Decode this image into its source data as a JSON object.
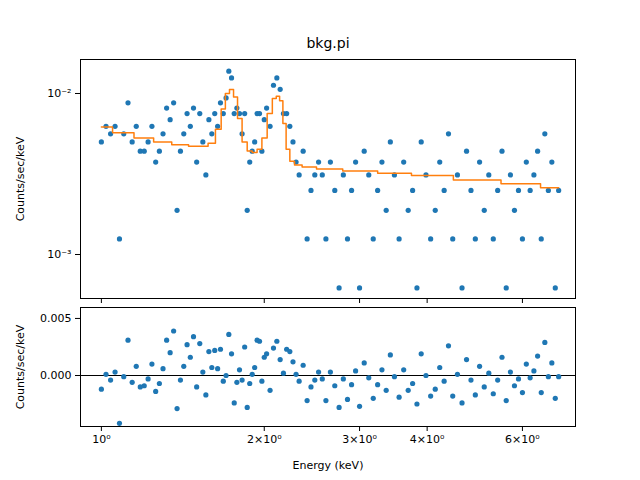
{
  "chart_data": [
    {
      "type": "scatter",
      "title": "bkg.pi",
      "ylabel": "Counts/sec/keV",
      "log": true,
      "tick_labels": "y",
      "xlim": [
        0.915,
        7.52
      ],
      "ylim": [
        0.000533,
        0.01626
      ],
      "xticks": [
        {
          "value": 1,
          "label": "10⁰"
        },
        {
          "value": 2,
          "label": "2×10⁰"
        },
        {
          "value": 3,
          "label": "3×10⁰"
        },
        {
          "value": 4,
          "label": "4×10⁰"
        },
        {
          "value": 6,
          "label": "6×10⁰"
        }
      ],
      "yticks": [
        {
          "value": 0.001,
          "label": "10⁻³"
        },
        {
          "value": 0.01,
          "label": "10⁻²"
        }
      ],
      "series": [
        {
          "type": "scatter",
          "color": "#1f77b4",
          "marker": "circle",
          "x": [
            1.0,
            1.02,
            1.04,
            1.06,
            1.08,
            1.1,
            1.12,
            1.14,
            1.16,
            1.18,
            1.2,
            1.22,
            1.24,
            1.26,
            1.28,
            1.3,
            1.32,
            1.34,
            1.36,
            1.38,
            1.4,
            1.42,
            1.44,
            1.46,
            1.48,
            1.5,
            1.52,
            1.54,
            1.56,
            1.58,
            1.6,
            1.62,
            1.64,
            1.66,
            1.68,
            1.7,
            1.72,
            1.74,
            1.76,
            1.78,
            1.8,
            1.82,
            1.84,
            1.86,
            1.88,
            1.9,
            1.92,
            1.94,
            1.96,
            1.98,
            2.0,
            2.02,
            2.05,
            2.08,
            2.11,
            2.14,
            2.17,
            2.2,
            2.23,
            2.26,
            2.29,
            2.32,
            2.36,
            2.4,
            2.44,
            2.48,
            2.52,
            2.56,
            2.6,
            2.65,
            2.7,
            2.75,
            2.8,
            2.85,
            2.9,
            2.95,
            3.0,
            3.06,
            3.12,
            3.18,
            3.24,
            3.3,
            3.36,
            3.42,
            3.48,
            3.55,
            3.62,
            3.69,
            3.76,
            3.83,
            3.9,
            3.98,
            4.06,
            4.14,
            4.22,
            4.3,
            4.38,
            4.46,
            4.55,
            4.64,
            4.73,
            4.82,
            4.91,
            5.0,
            5.1,
            5.2,
            5.3,
            5.4,
            5.5,
            5.6,
            5.7,
            5.8,
            5.9,
            6.0,
            6.1,
            6.2,
            6.3,
            6.4,
            6.5,
            6.6,
            6.7,
            6.8,
            6.9,
            7.0
          ],
          "values": [
            0.005,
            0.00625,
            0.00562,
            0.00625,
            0.00125,
            0.00562,
            0.00875,
            0.005,
            0.00625,
            0.00438,
            0.00438,
            0.005,
            0.00625,
            0.00375,
            0.00438,
            0.00562,
            0.00812,
            0.00688,
            0.00875,
            0.00188,
            0.00438,
            0.00562,
            0.0075,
            0.00625,
            0.00812,
            0.00375,
            0.0075,
            0.005,
            0.00312,
            0.00688,
            0.00562,
            0.0075,
            0.00625,
            0.00875,
            0.0075,
            0.00938,
            0.01375,
            0.0125,
            0.0075,
            0.00812,
            0.0075,
            0.00562,
            0.0075,
            0.00188,
            0.00375,
            0.00438,
            0.005,
            0.0075,
            0.0075,
            0.00438,
            0.00688,
            0.00812,
            0.00625,
            0.01125,
            0.0125,
            0.01062,
            0.0075,
            0.0075,
            0.00625,
            0.005,
            0.00375,
            0.00312,
            0.00438,
            0.00125,
            0.0025,
            0.00312,
            0.00375,
            0.00312,
            0.00125,
            0.00375,
            0.0025,
            0.00062,
            0.00312,
            0.00125,
            0.0025,
            0.00375,
            0.00062,
            0.00438,
            0.00312,
            0.00125,
            0.0025,
            0.00375,
            0.00188,
            0.005,
            0.00312,
            0.00125,
            0.00375,
            0.00188,
            0.0025,
            0.00062,
            0.005,
            0.00312,
            0.00125,
            0.00188,
            0.00375,
            0.0025,
            0.00562,
            0.00125,
            0.00312,
            0.00062,
            0.00438,
            0.0025,
            0.00125,
            0.00375,
            0.00188,
            0.00312,
            0.00125,
            0.0025,
            0.00438,
            0.00062,
            0.00312,
            0.00188,
            0.0025,
            0.00125,
            0.00375,
            0.0025,
            0.00312,
            0.00438,
            0.00125,
            0.00562,
            0.0025,
            0.00375,
            0.00062,
            0.0025
          ]
        },
        {
          "type": "line",
          "color": "#ff7f0e",
          "line_style": "steps",
          "x": [
            1.0,
            1.1,
            1.2,
            1.3,
            1.4,
            1.5,
            1.55,
            1.6,
            1.65,
            1.68,
            1.71,
            1.74,
            1.77,
            1.8,
            1.84,
            1.88,
            1.92,
            1.96,
            2.0,
            2.05,
            2.09,
            2.12,
            2.15,
            2.18,
            2.21,
            2.25,
            2.3,
            2.4,
            2.6,
            3.0,
            3.5,
            4.0,
            5.0,
            6.0,
            7.0
          ],
          "values": [
            0.0062,
            0.0057,
            0.0053,
            0.005,
            0.0048,
            0.0047,
            0.0047,
            0.0049,
            0.006,
            0.008,
            0.01,
            0.0106,
            0.0095,
            0.007,
            0.005,
            0.0044,
            0.0043,
            0.0045,
            0.0053,
            0.0075,
            0.0093,
            0.0096,
            0.009,
            0.0065,
            0.0045,
            0.0038,
            0.0036,
            0.0035,
            0.0034,
            0.0033,
            0.0032,
            0.0031,
            0.0029,
            0.00275,
            0.0026
          ]
        }
      ]
    },
    {
      "type": "scatter",
      "xlabel": "Energy (keV)",
      "ylabel": "Counts/sec/keV",
      "log": "x",
      "xlim": [
        0.915,
        7.52
      ],
      "ylim": [
        -0.00447,
        0.00596
      ],
      "xticks": [
        {
          "value": 1,
          "label": "10⁰"
        },
        {
          "value": 2,
          "label": "2×10⁰"
        },
        {
          "value": 3,
          "label": "3×10⁰"
        },
        {
          "value": 4,
          "label": "4×10⁰"
        },
        {
          "value": 6,
          "label": "6×10⁰"
        }
      ],
      "yticks": [
        {
          "value": 0,
          "label": "0.000"
        },
        0.005
      ],
      "hline": 0,
      "series": [
        {
          "type": "scatter",
          "color": "#1f77b4",
          "marker": "circle",
          "x": [
            1.0,
            1.02,
            1.04,
            1.06,
            1.08,
            1.1,
            1.12,
            1.14,
            1.16,
            1.18,
            1.2,
            1.22,
            1.24,
            1.26,
            1.28,
            1.3,
            1.32,
            1.34,
            1.36,
            1.38,
            1.4,
            1.42,
            1.44,
            1.46,
            1.48,
            1.5,
            1.52,
            1.54,
            1.56,
            1.58,
            1.6,
            1.62,
            1.64,
            1.66,
            1.68,
            1.7,
            1.72,
            1.74,
            1.76,
            1.78,
            1.8,
            1.82,
            1.84,
            1.86,
            1.88,
            1.9,
            1.92,
            1.94,
            1.96,
            1.98,
            2.0,
            2.02,
            2.05,
            2.08,
            2.11,
            2.14,
            2.17,
            2.2,
            2.23,
            2.26,
            2.29,
            2.32,
            2.36,
            2.4,
            2.44,
            2.48,
            2.52,
            2.56,
            2.6,
            2.65,
            2.7,
            2.75,
            2.8,
            2.85,
            2.9,
            2.95,
            3.0,
            3.06,
            3.12,
            3.18,
            3.24,
            3.3,
            3.36,
            3.42,
            3.48,
            3.55,
            3.62,
            3.69,
            3.76,
            3.83,
            3.9,
            3.98,
            4.06,
            4.14,
            4.22,
            4.3,
            4.38,
            4.46,
            4.55,
            4.64,
            4.73,
            4.82,
            4.91,
            5.0,
            5.1,
            5.2,
            5.3,
            5.4,
            5.5,
            5.6,
            5.7,
            5.8,
            5.9,
            6.0,
            6.1,
            6.2,
            6.3,
            6.4,
            6.5,
            6.6,
            6.7,
            6.8,
            6.9,
            7.0
          ],
          "values": [
            -0.0012,
            0.0001,
            -0.0004,
            0.0003,
            -0.0042,
            -0.0001,
            0.0031,
            -0.0006,
            0.0008,
            -0.001,
            -0.0009,
            -0.0003,
            0.001,
            -0.0014,
            -0.0007,
            0.0006,
            0.0031,
            0.002,
            0.0039,
            -0.0029,
            -0.0004,
            0.0008,
            0.0027,
            0.0016,
            0.0034,
            -0.001,
            0.0028,
            0.0003,
            -0.0017,
            0.0021,
            0.0007,
            0.0022,
            0.0006,
            0.0023,
            -0.0005,
            0.0,
            0.0036,
            0.0019,
            -0.0024,
            -0.0006,
            0.0005,
            -0.0004,
            0.0025,
            -0.0028,
            -0.0007,
            0.0001,
            0.0007,
            0.0031,
            0.003,
            -0.0005,
            0.0016,
            0.0019,
            -0.0013,
            0.0024,
            0.003,
            0.0014,
            0.0002,
            0.0023,
            0.0021,
            0.0012,
            0.0001,
            -0.0005,
            0.0009,
            -0.0022,
            -0.001,
            -0.0004,
            0.0003,
            -0.0003,
            -0.0022,
            0.0003,
            -0.0009,
            -0.0028,
            -0.0003,
            -0.0021,
            -0.0008,
            0.0004,
            -0.0027,
            0.0011,
            -0.0002,
            -0.002,
            -0.0008,
            0.0005,
            -0.0013,
            0.0018,
            -0.0001,
            -0.0019,
            0.0005,
            -0.0013,
            -0.0007,
            -0.0025,
            0.0019,
            0.0,
            -0.0018,
            -0.0012,
            0.0007,
            -0.0005,
            0.0026,
            -0.0018,
            0.0001,
            -0.0024,
            0.0014,
            -0.0004,
            -0.0017,
            0.0008,
            -0.001,
            0.0002,
            -0.0016,
            -0.0004,
            0.0016,
            -0.0022,
            0.0003,
            -0.0009,
            -0.0003,
            -0.0015,
            0.001,
            -0.0002,
            0.0004,
            0.0017,
            -0.0015,
            0.0029,
            -0.0001,
            0.0011,
            -0.002,
            -0.0001
          ]
        }
      ]
    }
  ]
}
